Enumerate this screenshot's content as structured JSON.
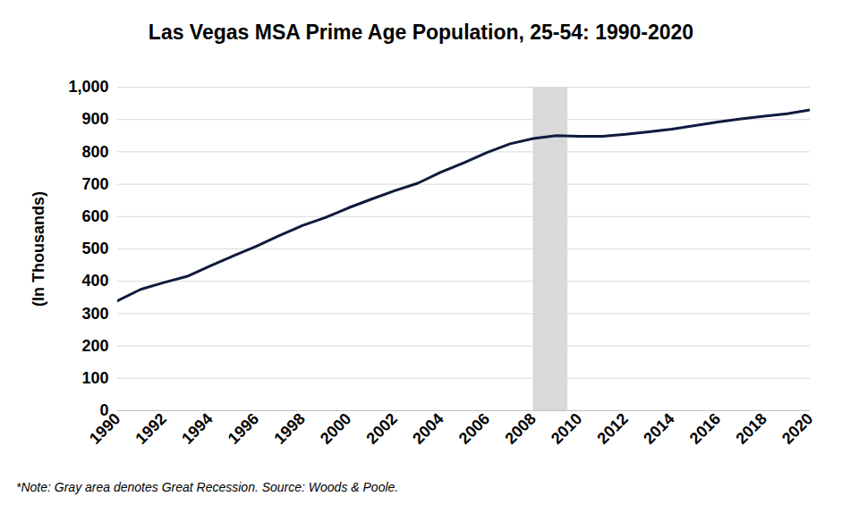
{
  "chart_data": {
    "type": "line",
    "title": "Las Vegas MSA Prime Age Population, 25-54: 1990-2020",
    "y_label": "(In Thousands)",
    "note": "*Note: Gray area denotes Great Recession. Source: Woods & Poole.",
    "x": [
      1990,
      1991,
      1992,
      1993,
      1994,
      1995,
      1996,
      1997,
      1998,
      1999,
      2000,
      2001,
      2002,
      2003,
      2004,
      2005,
      2006,
      2007,
      2008,
      2009,
      2010,
      2011,
      2012,
      2013,
      2014,
      2015,
      2016,
      2017,
      2018,
      2019,
      2020
    ],
    "values": [
      340,
      375,
      396,
      415,
      447,
      478,
      508,
      541,
      572,
      597,
      627,
      654,
      680,
      703,
      737,
      766,
      798,
      825,
      841,
      850,
      848,
      848,
      854,
      862,
      870,
      881,
      892,
      902,
      910,
      918,
      930
    ],
    "color": "#0f1a3d",
    "recession": [
      2008,
      2009.5
    ],
    "recession_color": "#d9d9d9",
    "xlim": [
      1990,
      2020
    ],
    "xticks": [
      1990,
      1992,
      1994,
      1996,
      1998,
      2000,
      2002,
      2004,
      2006,
      2008,
      2010,
      2012,
      2014,
      2016,
      2018,
      2020
    ],
    "ylim": [
      0,
      1000
    ],
    "yticks": [
      0,
      100,
      200,
      300,
      400,
      500,
      600,
      700,
      800,
      900,
      {
        "value": 1000,
        "label": "1,000"
      }
    ],
    "grid": true
  }
}
